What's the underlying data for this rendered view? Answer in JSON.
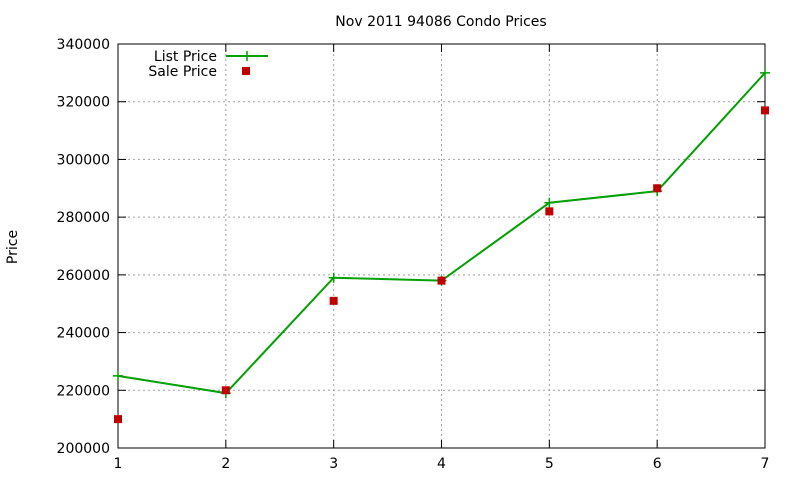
{
  "chart_data": {
    "type": "line",
    "title": "Nov 2011 94086 Condo Prices",
    "xlabel": "",
    "ylabel": "Price",
    "x": [
      1,
      2,
      3,
      4,
      5,
      6,
      7
    ],
    "xlim": [
      1,
      7
    ],
    "ylim": [
      200000,
      340000
    ],
    "x_ticks": [
      1,
      2,
      3,
      4,
      5,
      6,
      7
    ],
    "y_ticks": [
      200000,
      220000,
      240000,
      260000,
      280000,
      300000,
      320000,
      340000
    ],
    "grid": true,
    "legend_position": "top-left",
    "series": [
      {
        "name": "List Price",
        "style": "lines-and-plus-markers",
        "color": "#00a000",
        "values": [
          225000,
          219000,
          259000,
          258000,
          285000,
          289000,
          330000
        ]
      },
      {
        "name": "Sale Price",
        "style": "square-markers",
        "color": "#c00000",
        "values": [
          210000,
          220000,
          251000,
          258000,
          282000,
          290000,
          317000
        ]
      }
    ]
  }
}
